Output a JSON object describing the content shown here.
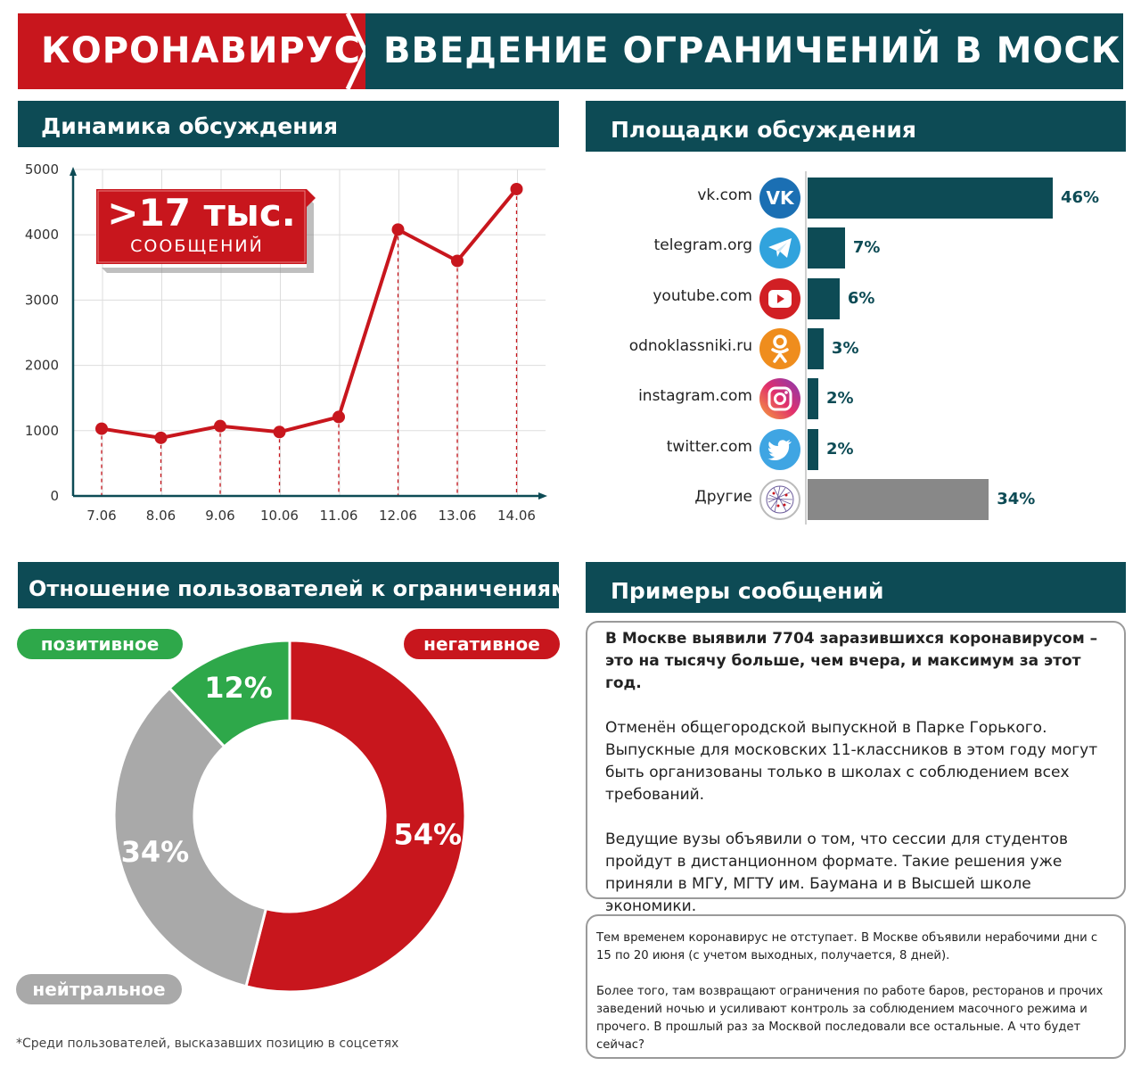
{
  "banner": {
    "left": "КОРОНАВИРУС",
    "right": "ВВЕДЕНИЕ ОГРАНИЧЕНИЙ В МОСКВЕ"
  },
  "colors": {
    "red": "#c8161d",
    "teal": "#0d4b55",
    "green": "#2ea84a",
    "gray": "#a9a9a9",
    "dark_gray": "#888888"
  },
  "dynamics": {
    "title": "Динамика обсуждения",
    "badge_big": ">17 тыс.",
    "badge_small": "СООБЩЕНИЙ",
    "chart_data": {
      "type": "line",
      "x": [
        "7.06",
        "8.06",
        "9.06",
        "10.06",
        "11.06",
        "12.06",
        "13.06",
        "14.06"
      ],
      "values": [
        1030,
        890,
        1070,
        980,
        1210,
        4080,
        3600,
        4700
      ],
      "ylim": [
        0,
        5000
      ],
      "yticks": [
        0,
        1000,
        2000,
        3000,
        4000,
        5000
      ],
      "grid": true
    }
  },
  "platforms": {
    "title": "Площадки обсуждения",
    "chart_data": {
      "type": "bar",
      "orientation": "horizontal",
      "categories": [
        "vk.com",
        "telegram.org",
        "youtube.com",
        "odnoklassniki.ru",
        "instagram.com",
        "twitter.com",
        "Другие"
      ],
      "values": [
        46,
        7,
        6,
        3,
        2,
        2,
        34
      ],
      "labels": [
        "46%",
        "7%",
        "6%",
        "3%",
        "2%",
        "2%",
        "34%"
      ],
      "icons": [
        "vk-icon",
        "telegram-icon",
        "youtube-icon",
        "odnoklassniki-icon",
        "instagram-icon",
        "twitter-icon",
        "network-icon"
      ],
      "bar_colors": [
        "#0d4b55",
        "#0d4b55",
        "#0d4b55",
        "#0d4b55",
        "#0d4b55",
        "#0d4b55",
        "#888888"
      ]
    }
  },
  "attitude": {
    "title": "Отношение пользователей к ограничениям*",
    "positive_label": "позитивное",
    "negative_label": "негативное",
    "neutral_label": "нейтральное",
    "footnote": "*Среди пользователей, высказавших позицию в соцсетях",
    "chart_data": {
      "type": "pie",
      "donut": true,
      "slices": [
        {
          "label": "негативное",
          "value": 54,
          "text": "54%",
          "color": "#c8161d"
        },
        {
          "label": "нейтральное",
          "value": 34,
          "text": "34%",
          "color": "#a9a9a9"
        },
        {
          "label": "позитивное",
          "value": 12,
          "text": "12%",
          "color": "#2ea84a"
        }
      ]
    }
  },
  "examples": {
    "title": "Примеры сообщений",
    "box1": {
      "bold": "В Москве выявили 7704 заразившихся коронавирусом – это на тысячу больше, чем вчера, и максимум за этот год.",
      "p2": "Отменён общегородской выпускной в Парке Горького. Выпускные для московских 11-классников в этом году могут быть организованы только в школах с соблюдением всех требований.",
      "p3": "Ведущие вузы объявили о том, что сессии для студентов пройдут в дистанционном формате. Такие решения уже приняли в МГУ, МГТУ им. Баумана и в Высшей школе экономики."
    },
    "box2": {
      "p1": "Тем временем коронавирус не отступает. В Москве объявили нерабочими дни с 15 по 20 июня (с учетом выходных, получается, 8 дней).",
      "p2": "Более того, там возвращают ограничения по работе баров, ресторанов и прочих заведений ночью и усиливают контроль за соблюдением масочного режима и прочего. В прошлый раз за Москвой последовали все остальные. А что будет сейчас?"
    }
  }
}
